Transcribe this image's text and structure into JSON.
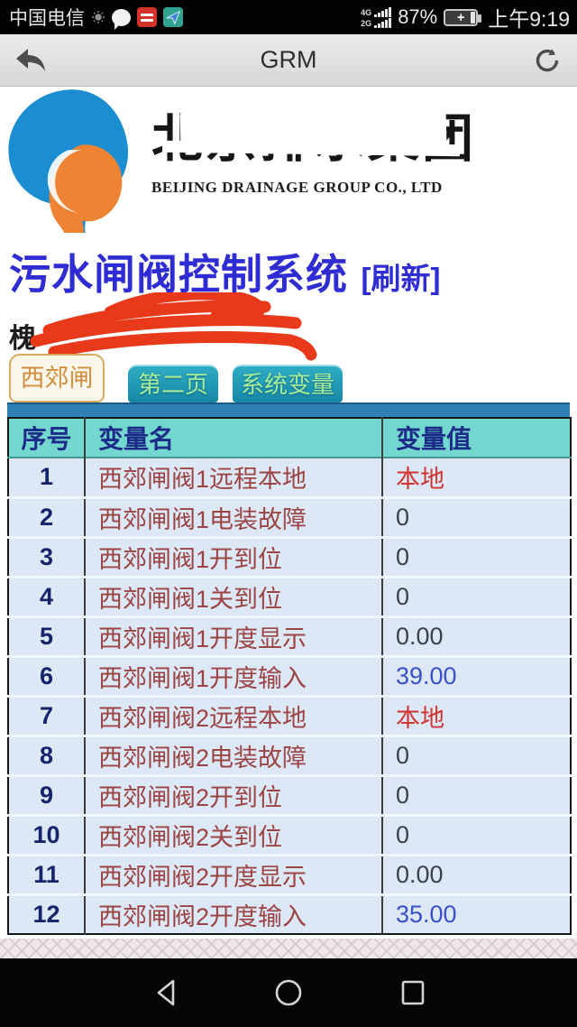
{
  "status_bar": {
    "carrier": "中国电信",
    "sim1_label": "4G",
    "sim2_label": "2G",
    "battery_percent": "87%",
    "battery_plus": "+",
    "time": "上午9:19",
    "icons": [
      "sun-icon",
      "chat-bubble-icon",
      "red-app-icon",
      "paper-plane-app-icon"
    ]
  },
  "browser": {
    "title": "GRM",
    "icons": [
      "back-icon",
      "refresh-icon"
    ]
  },
  "logo": {
    "company_cn": "北京排水集团",
    "company_en": "BEIJING DRAINAGE GROUP CO., LTD"
  },
  "main": {
    "title": "污水闸阀控制系统",
    "refresh_label": "[刷新]",
    "subtitle_visible": "槐",
    "subtitle_note": "remainder-of-line-obscured-by-red-scribble"
  },
  "tabs": [
    {
      "label": "西郊闸",
      "active": true
    },
    {
      "label": "第二页",
      "active": false
    },
    {
      "label": "系统变量",
      "active": false
    }
  ],
  "table": {
    "headers": [
      "序号",
      "变量名",
      "变量值"
    ],
    "rows": [
      {
        "no": "1",
        "name": "西郊闸阀1远程本地",
        "value": "本地",
        "value_style": "red"
      },
      {
        "no": "2",
        "name": "西郊闸阀1电装故障",
        "value": "0",
        "value_style": "dark"
      },
      {
        "no": "3",
        "name": "西郊闸阀1开到位",
        "value": "0",
        "value_style": "dark"
      },
      {
        "no": "4",
        "name": "西郊闸阀1关到位",
        "value": "0",
        "value_style": "dark"
      },
      {
        "no": "5",
        "name": "西郊闸阀1开度显示",
        "value": "0.00",
        "value_style": "dark"
      },
      {
        "no": "6",
        "name": "西郊闸阀1开度输入",
        "value": "39.00",
        "value_style": "blue"
      },
      {
        "no": "7",
        "name": "西郊闸阀2远程本地",
        "value": "本地",
        "value_style": "red"
      },
      {
        "no": "8",
        "name": "西郊闸阀2电装故障",
        "value": "0",
        "value_style": "dark"
      },
      {
        "no": "9",
        "name": "西郊闸阀2开到位",
        "value": "0",
        "value_style": "dark"
      },
      {
        "no": "10",
        "name": "西郊闸阀2关到位",
        "value": "0",
        "value_style": "dark"
      },
      {
        "no": "11",
        "name": "西郊闸阀2开度显示",
        "value": "0.00",
        "value_style": "dark"
      },
      {
        "no": "12",
        "name": "西郊闸阀2开度输入",
        "value": "35.00",
        "value_style": "blue"
      }
    ]
  },
  "colors": {
    "title_blue": "#2f2cd3",
    "value_red": "#d03430",
    "value_blue": "#3b50c9",
    "value_dark": "#3a414b",
    "name_maroon": "#9c4343",
    "header_teal": "#73d7cf",
    "row_bg": "#dce8f6",
    "tab_teal": "#1f97b3",
    "active_tab_orange": "#cf8f3f",
    "underbar_blue": "#2e80b6",
    "scribble_red": "#e8391b"
  }
}
